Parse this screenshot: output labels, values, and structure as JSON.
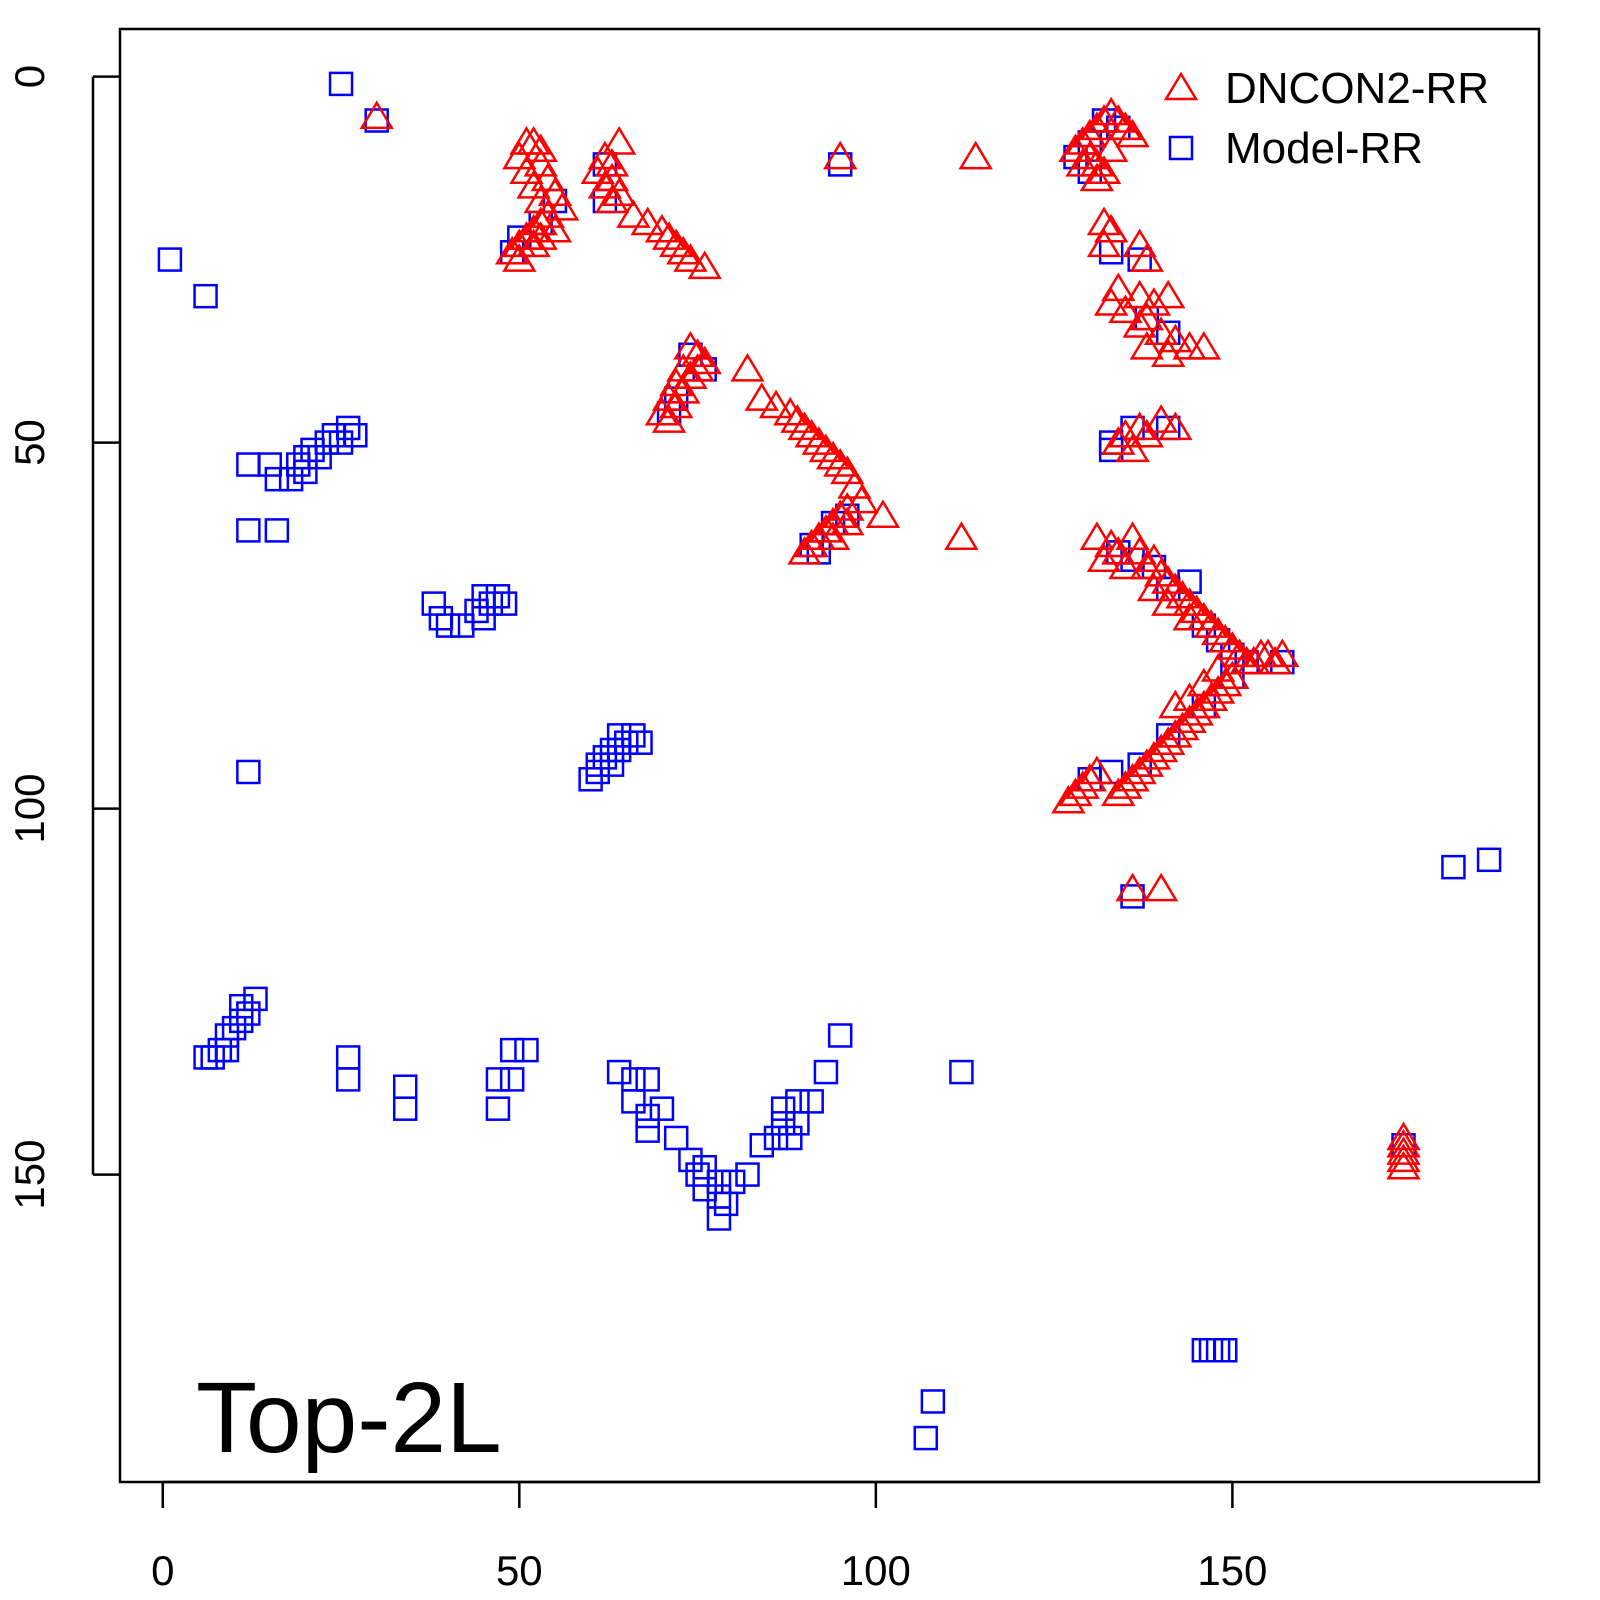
{
  "chart_data": {
    "type": "scatter",
    "title": "",
    "xlabel": "",
    "ylabel": "",
    "xlim": [
      -6,
      193
    ],
    "ylim": [
      -6.5,
      192
    ],
    "y_reversed": true,
    "x_ticks": [
      0,
      50,
      100,
      150
    ],
    "y_ticks": [
      0,
      50,
      100,
      150
    ],
    "legend_position": "top-right",
    "annotation": "Top-2L",
    "series": [
      {
        "name": "DNCON2-RR",
        "marker": "triangle",
        "color": "#ff0000",
        "points": [
          [
            30,
            5.5
          ],
          [
            51,
            9
          ],
          [
            52,
            9
          ],
          [
            53,
            10
          ],
          [
            50,
            11
          ],
          [
            53,
            12
          ],
          [
            51,
            13
          ],
          [
            54,
            14
          ],
          [
            52,
            15
          ],
          [
            55,
            16
          ],
          [
            53,
            17
          ],
          [
            56,
            18
          ],
          [
            54,
            19
          ],
          [
            53,
            20
          ],
          [
            52,
            21
          ],
          [
            51,
            22
          ],
          [
            50,
            23
          ],
          [
            49,
            24
          ],
          [
            52,
            23
          ],
          [
            55,
            21
          ],
          [
            50,
            25
          ],
          [
            53,
            22
          ],
          [
            64,
            9
          ],
          [
            62,
            11
          ],
          [
            63,
            12
          ],
          [
            61,
            13
          ],
          [
            63,
            14
          ],
          [
            62,
            15
          ],
          [
            64,
            16
          ],
          [
            63,
            17
          ],
          [
            66,
            19
          ],
          [
            68,
            20
          ],
          [
            70,
            21
          ],
          [
            71,
            22
          ],
          [
            72,
            23
          ],
          [
            73,
            24
          ],
          [
            74,
            25
          ],
          [
            76,
            26
          ],
          [
            74,
            37
          ],
          [
            75,
            38
          ],
          [
            76,
            39
          ],
          [
            73,
            40
          ],
          [
            74,
            41
          ],
          [
            72,
            42
          ],
          [
            73,
            43
          ],
          [
            71,
            44
          ],
          [
            72,
            45
          ],
          [
            70,
            46
          ],
          [
            71,
            47
          ],
          [
            75,
            40
          ],
          [
            82,
            40
          ],
          [
            84,
            44
          ],
          [
            86,
            45
          ],
          [
            88,
            46
          ],
          [
            89,
            47
          ],
          [
            90,
            48
          ],
          [
            91,
            49
          ],
          [
            92,
            50
          ],
          [
            93,
            51
          ],
          [
            94,
            52
          ],
          [
            95,
            53
          ],
          [
            96,
            54
          ],
          [
            97,
            56
          ],
          [
            98,
            58
          ],
          [
            101,
            60
          ],
          [
            96,
            59
          ],
          [
            95,
            60
          ],
          [
            94,
            61
          ],
          [
            93,
            62
          ],
          [
            92,
            63
          ],
          [
            91,
            64
          ],
          [
            90,
            65
          ],
          [
            94,
            63
          ],
          [
            96,
            61
          ],
          [
            112,
            63
          ],
          [
            95,
            11
          ],
          [
            114,
            11
          ],
          [
            128,
            10
          ],
          [
            129,
            9
          ],
          [
            130,
            8
          ],
          [
            131,
            7
          ],
          [
            132,
            6
          ],
          [
            133,
            5
          ],
          [
            134,
            6
          ],
          [
            135,
            7
          ],
          [
            136,
            8
          ],
          [
            130,
            11
          ],
          [
            131,
            12
          ],
          [
            132,
            13
          ],
          [
            131,
            14
          ],
          [
            129,
            12
          ],
          [
            133,
            10
          ],
          [
            132,
            20
          ],
          [
            133,
            21
          ],
          [
            132,
            23
          ],
          [
            137,
            23
          ],
          [
            138,
            25
          ],
          [
            134,
            29
          ],
          [
            133,
            31
          ],
          [
            135,
            32
          ],
          [
            137,
            30
          ],
          [
            139,
            31
          ],
          [
            141,
            30
          ],
          [
            138,
            33
          ],
          [
            137,
            34
          ],
          [
            140,
            35
          ],
          [
            142,
            36
          ],
          [
            144,
            37
          ],
          [
            146,
            37
          ],
          [
            138,
            37
          ],
          [
            141,
            38
          ],
          [
            134,
            50
          ],
          [
            136,
            51
          ],
          [
            135,
            49
          ],
          [
            137,
            48
          ],
          [
            138,
            49
          ],
          [
            140,
            47
          ],
          [
            142,
            48
          ],
          [
            131,
            63
          ],
          [
            133,
            64
          ],
          [
            132,
            66
          ],
          [
            134,
            65
          ],
          [
            136,
            63
          ],
          [
            137,
            65
          ],
          [
            138,
            67
          ],
          [
            139,
            66
          ],
          [
            140,
            68
          ],
          [
            141,
            69
          ],
          [
            142,
            70
          ],
          [
            143,
            71
          ],
          [
            144,
            72
          ],
          [
            145,
            73
          ],
          [
            146,
            74
          ],
          [
            147,
            75
          ],
          [
            148,
            76
          ],
          [
            149,
            77
          ],
          [
            150,
            78
          ],
          [
            151,
            79
          ],
          [
            152,
            80
          ],
          [
            153,
            80
          ],
          [
            154,
            79
          ],
          [
            155,
            79
          ],
          [
            156,
            80
          ],
          [
            157,
            79
          ],
          [
            135,
            67
          ],
          [
            139,
            70
          ],
          [
            141,
            72
          ],
          [
            144,
            74
          ],
          [
            150,
            82
          ],
          [
            149,
            83
          ],
          [
            148,
            84
          ],
          [
            147,
            85
          ],
          [
            146,
            86
          ],
          [
            145,
            87
          ],
          [
            144,
            88
          ],
          [
            143,
            89
          ],
          [
            142,
            90
          ],
          [
            141,
            91
          ],
          [
            140,
            92
          ],
          [
            139,
            93
          ],
          [
            138,
            94
          ],
          [
            137,
            95
          ],
          [
            136,
            96
          ],
          [
            135,
            97
          ],
          [
            134,
            98
          ],
          [
            131,
            95
          ],
          [
            130,
            96
          ],
          [
            129,
            97
          ],
          [
            128,
            98
          ],
          [
            127,
            99
          ],
          [
            142,
            86
          ],
          [
            144,
            85
          ],
          [
            146,
            83
          ],
          [
            148,
            81
          ],
          [
            136,
            111
          ],
          [
            140,
            111
          ],
          [
            174,
            145
          ],
          [
            174,
            146
          ],
          [
            174,
            147
          ],
          [
            174,
            148
          ],
          [
            174,
            149
          ]
        ]
      },
      {
        "name": "Model-RR",
        "marker": "square",
        "color": "#0000ff",
        "points": [
          [
            25,
            1
          ],
          [
            30,
            6
          ],
          [
            1,
            25
          ],
          [
            6,
            30
          ],
          [
            12,
            53
          ],
          [
            15,
            53
          ],
          [
            16,
            55
          ],
          [
            18,
            55
          ],
          [
            19,
            53
          ],
          [
            20,
            54
          ],
          [
            20,
            52
          ],
          [
            21,
            51
          ],
          [
            22,
            52
          ],
          [
            23,
            50
          ],
          [
            24,
            49
          ],
          [
            25,
            50
          ],
          [
            26,
            48
          ],
          [
            27,
            49
          ],
          [
            12,
            62
          ],
          [
            16,
            62
          ],
          [
            38,
            72
          ],
          [
            39,
            74
          ],
          [
            40,
            75
          ],
          [
            42,
            75
          ],
          [
            44,
            73
          ],
          [
            45,
            74
          ],
          [
            46,
            72
          ],
          [
            47,
            71
          ],
          [
            48,
            72
          ],
          [
            45,
            71
          ],
          [
            12,
            95
          ],
          [
            60,
            96
          ],
          [
            61,
            95
          ],
          [
            61,
            94
          ],
          [
            62,
            93
          ],
          [
            63,
            92
          ],
          [
            64,
            92
          ],
          [
            65,
            91
          ],
          [
            66,
            90
          ],
          [
            67,
            91
          ],
          [
            64,
            90
          ],
          [
            63,
            94
          ],
          [
            13,
            126
          ],
          [
            12,
            128
          ],
          [
            11,
            129
          ],
          [
            10,
            130
          ],
          [
            9,
            131
          ],
          [
            8,
            133
          ],
          [
            7,
            134
          ],
          [
            6,
            134
          ],
          [
            11,
            127
          ],
          [
            9,
            133
          ],
          [
            26,
            134
          ],
          [
            26,
            137
          ],
          [
            34,
            138
          ],
          [
            34,
            141
          ],
          [
            47,
            137
          ],
          [
            47,
            141
          ],
          [
            49,
            133
          ],
          [
            49,
            137
          ],
          [
            51,
            133
          ],
          [
            64,
            136
          ],
          [
            66,
            137
          ],
          [
            68,
            137
          ],
          [
            66,
            140
          ],
          [
            68,
            142
          ],
          [
            70,
            141
          ],
          [
            68,
            144
          ],
          [
            72,
            145
          ],
          [
            74,
            148
          ],
          [
            75,
            150
          ],
          [
            76,
            149
          ],
          [
            76,
            152
          ],
          [
            78,
            151
          ],
          [
            78,
            153
          ],
          [
            78,
            156
          ],
          [
            79,
            154
          ],
          [
            80,
            151
          ],
          [
            82,
            150
          ],
          [
            84,
            146
          ],
          [
            86,
            145
          ],
          [
            87,
            143
          ],
          [
            87,
            141
          ],
          [
            89,
            140
          ],
          [
            89,
            143
          ],
          [
            91,
            140
          ],
          [
            93,
            136
          ],
          [
            95,
            131
          ],
          [
            88,
            145
          ],
          [
            95,
            12
          ],
          [
            49,
            24
          ],
          [
            50,
            22
          ],
          [
            53,
            20
          ],
          [
            55,
            17
          ],
          [
            62,
            12
          ],
          [
            62,
            17
          ],
          [
            74,
            38
          ],
          [
            76,
            40
          ],
          [
            71,
            46
          ],
          [
            72,
            44
          ],
          [
            91,
            64
          ],
          [
            94,
            61
          ],
          [
            96,
            60
          ],
          [
            92,
            65
          ],
          [
            112,
            136
          ],
          [
            107,
            186
          ],
          [
            108,
            181
          ],
          [
            128,
            11
          ],
          [
            130,
            9
          ],
          [
            132,
            6
          ],
          [
            134,
            7
          ],
          [
            130,
            13
          ],
          [
            133,
            24
          ],
          [
            137,
            25
          ],
          [
            138,
            33
          ],
          [
            141,
            35
          ],
          [
            133,
            50
          ],
          [
            136,
            48
          ],
          [
            141,
            48
          ],
          [
            133,
            51
          ],
          [
            134,
            65
          ],
          [
            136,
            66
          ],
          [
            139,
            67
          ],
          [
            141,
            70
          ],
          [
            144,
            69
          ],
          [
            146,
            75
          ],
          [
            148,
            77
          ],
          [
            150,
            79
          ],
          [
            152,
            80
          ],
          [
            157,
            80
          ],
          [
            150,
            82
          ],
          [
            146,
            86
          ],
          [
            141,
            90
          ],
          [
            137,
            94
          ],
          [
            133,
            95
          ],
          [
            130,
            96
          ],
          [
            136,
            112
          ],
          [
            146,
            174
          ],
          [
            147,
            174
          ],
          [
            148,
            174
          ],
          [
            149,
            174
          ],
          [
            174,
            146
          ],
          [
            181,
            108
          ],
          [
            186,
            107
          ]
        ]
      }
    ]
  }
}
